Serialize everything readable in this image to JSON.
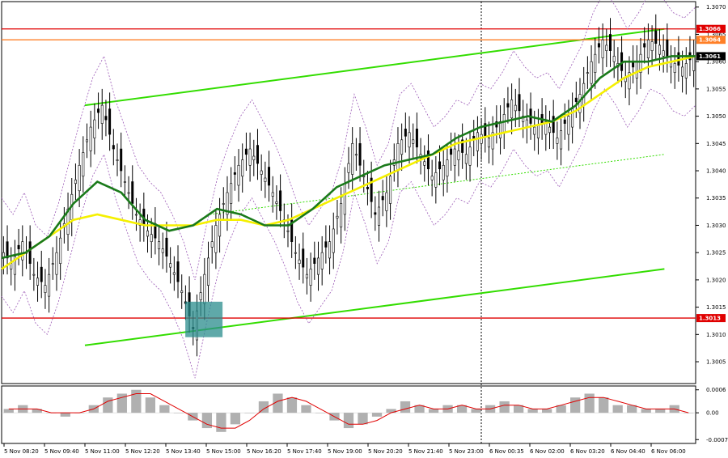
{
  "chart_data": {
    "type": "candlestick",
    "main": {
      "ylim": [
        1.3001,
        1.3071
      ],
      "price_ticks": [
        "1.3070",
        "1.3065",
        "1.3060",
        "1.3055",
        "1.3050",
        "1.3045",
        "1.3040",
        "1.3035",
        "1.3030",
        "1.3025",
        "1.3020",
        "1.3015",
        "1.3010",
        "1.3005"
      ],
      "price_tick_values": [
        1.307,
        1.3065,
        1.306,
        1.3055,
        1.305,
        1.3045,
        1.304,
        1.3035,
        1.303,
        1.3025,
        1.302,
        1.3015,
        1.301,
        1.3005
      ],
      "levels": [
        {
          "value": 1.3066,
          "label": "1.3066",
          "color": "#e00000"
        },
        {
          "value": 1.3064,
          "label": "1.3064",
          "color": "#ff7f27"
        },
        {
          "value": 1.3061,
          "label": "1.3061",
          "color": "#000000"
        },
        {
          "value": 1.3013,
          "label": "1.3013",
          "color": "#e00000"
        }
      ],
      "time_labels": [
        "5 Nov 08:20",
        "5 Nov 09:40",
        "5 Nov 11:00",
        "5 Nov 12:20",
        "5 Nov 13:40",
        "5 Nov 15:00",
        "5 Nov 16:20",
        "5 Nov 17:40",
        "5 Nov 19:00",
        "5 Nov 20:20",
        "5 Nov 21:40",
        "5 Nov 23:00",
        "6 Nov 00:35",
        "6 Nov 02:00",
        "6 Nov 03:20",
        "6 Nov 04:40",
        "6 Nov 06:00"
      ],
      "close_path": [
        1.3026,
        1.3023,
        1.3027,
        1.3021,
        1.3019,
        1.3025,
        1.3033,
        1.3041,
        1.3048,
        1.3052,
        1.3044,
        1.3038,
        1.3032,
        1.3029,
        1.3027,
        1.3023,
        1.3018,
        1.3011,
        1.3021,
        1.303,
        1.3036,
        1.3041,
        1.3044,
        1.304,
        1.3036,
        1.3031,
        1.3025,
        1.3021,
        1.3024,
        1.3027,
        1.3034,
        1.3045,
        1.3039,
        1.3032,
        1.3036,
        1.3045,
        1.3047,
        1.3043,
        1.3039,
        1.3041,
        1.3044,
        1.3043,
        1.3047,
        1.3046,
        1.3049,
        1.3053,
        1.305,
        1.3048,
        1.3049,
        1.3046,
        1.305,
        1.3054,
        1.306,
        1.3064,
        1.3061,
        1.3057,
        1.306,
        1.3064,
        1.3063,
        1.306,
        1.3059,
        1.3061
      ],
      "ema_fast": [
        1.3024,
        1.3025,
        1.3028,
        1.3034,
        1.3038,
        1.3036,
        1.3031,
        1.3029,
        1.303,
        1.3033,
        1.3032,
        1.303,
        1.303,
        1.3033,
        1.3037,
        1.3039,
        1.3041,
        1.3042,
        1.3043,
        1.3046,
        1.3048,
        1.3049,
        1.305,
        1.3049,
        1.3052,
        1.3057,
        1.306,
        1.306,
        1.3061,
        1.3061
      ],
      "ema_slow": [
        1.3022,
        1.3025,
        1.3028,
        1.3031,
        1.3032,
        1.3031,
        1.303,
        1.303,
        1.303,
        1.3031,
        1.3031,
        1.303,
        1.3031,
        1.3033,
        1.3035,
        1.3037,
        1.3039,
        1.3041,
        1.3043,
        1.3045,
        1.3046,
        1.3047,
        1.3048,
        1.3049,
        1.3051,
        1.3054,
        1.3057,
        1.3059,
        1.306,
        1.3061
      ],
      "channel_upper": [
        [
          1.3052,
          0.12
        ],
        [
          1.3066,
          0.955
        ]
      ],
      "channel_lower": [
        [
          1.3008,
          0.12
        ],
        [
          1.3022,
          0.955
        ]
      ],
      "channel_mid": [
        [
          1.3032,
          0.3
        ],
        [
          1.3043,
          0.955
        ]
      ]
    },
    "oscillator": {
      "ylim": [
        -0.0008,
        0.0007
      ],
      "ticks": [
        "0.0006",
        "0.00",
        "-0.0007"
      ],
      "tick_values": [
        0.0006,
        0.0,
        -0.0007
      ],
      "histogram": [
        0.0001,
        0.0002,
        0.0001,
        0.0,
        -0.0001,
        0.0,
        0.0002,
        0.0004,
        0.0005,
        0.0006,
        0.0004,
        0.0002,
        0.0,
        -0.0002,
        -0.0004,
        -0.0005,
        -0.0003,
        0.0,
        0.0003,
        0.0005,
        0.0004,
        0.0002,
        0.0,
        -0.0002,
        -0.0004,
        -0.0003,
        -0.0001,
        0.0001,
        0.0003,
        0.0002,
        0.0001,
        0.0002,
        0.0002,
        0.0001,
        0.0002,
        0.0003,
        0.0002,
        0.0001,
        0.0001,
        0.0002,
        0.0004,
        0.0005,
        0.0004,
        0.0002,
        0.0002,
        0.0001,
        0.0001,
        0.0002,
        0.0
      ],
      "signal": [
        0.0001,
        0.0001,
        0.0001,
        0.0,
        0.0,
        0.0,
        0.0001,
        0.0003,
        0.0004,
        0.0005,
        0.0005,
        0.0003,
        0.0001,
        -0.0001,
        -0.0003,
        -0.0004,
        -0.0004,
        -0.0002,
        0.0001,
        0.0003,
        0.0004,
        0.0003,
        0.0001,
        -0.0001,
        -0.0003,
        -0.0003,
        -0.0002,
        0.0,
        0.0001,
        0.0002,
        0.0001,
        0.0001,
        0.0002,
        0.0001,
        0.0001,
        0.0002,
        0.0002,
        0.0001,
        0.0001,
        0.0002,
        0.0003,
        0.0004,
        0.0004,
        0.0003,
        0.0002,
        0.0001,
        0.0001,
        0.0001,
        0.0
      ]
    }
  }
}
